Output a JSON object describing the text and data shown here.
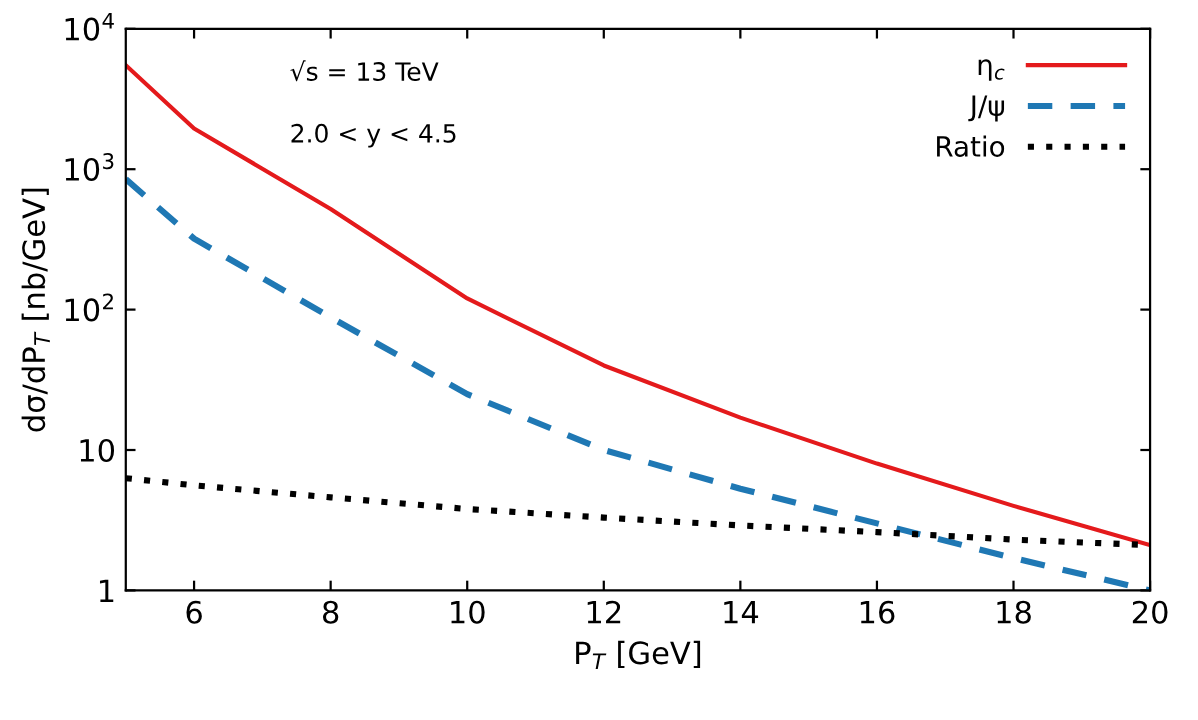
{
  "chart_data": {
    "type": "line",
    "xlabel": "P$_{T}$ [GeV]",
    "ylabel": "dσ/dP$_{T}$ [nb/GeV]",
    "x": [
      5,
      6,
      8,
      10,
      12,
      14,
      16,
      18,
      20
    ],
    "series": [
      {
        "name": "η$_{c}$",
        "color": "#e41a1c",
        "line_style": "solid",
        "values": [
          5500,
          1950,
          520,
          120,
          40,
          17,
          8,
          4,
          2.1
        ]
      },
      {
        "name": "J/ψ",
        "color": "#1f78b4",
        "line_style": "dashed",
        "values": [
          850,
          320,
          88,
          25,
          10,
          5.3,
          3,
          1.7,
          1.0
        ]
      },
      {
        "name": "Ratio",
        "color": "#000000",
        "line_style": "dotted",
        "values": [
          6.3,
          5.6,
          4.6,
          3.8,
          3.3,
          2.9,
          2.6,
          2.3,
          2.1
        ]
      }
    ],
    "log": "y",
    "xlim": [
      5,
      20
    ],
    "ylim": [
      1,
      10000
    ],
    "xticks": [
      6,
      8,
      10,
      12,
      14,
      16,
      18,
      20
    ],
    "yticks": [
      1,
      10,
      {
        "value": 100,
        "label": "10$^{2}$"
      },
      {
        "value": 1000,
        "label": "10$^{3}$"
      },
      {
        "value": 10000,
        "label": "10$^{4}$"
      }
    ],
    "annotations": [
      "√s = 13 TeV",
      "2.0 < y < 4.5"
    ],
    "legend": "top right",
    "grid": false
  }
}
